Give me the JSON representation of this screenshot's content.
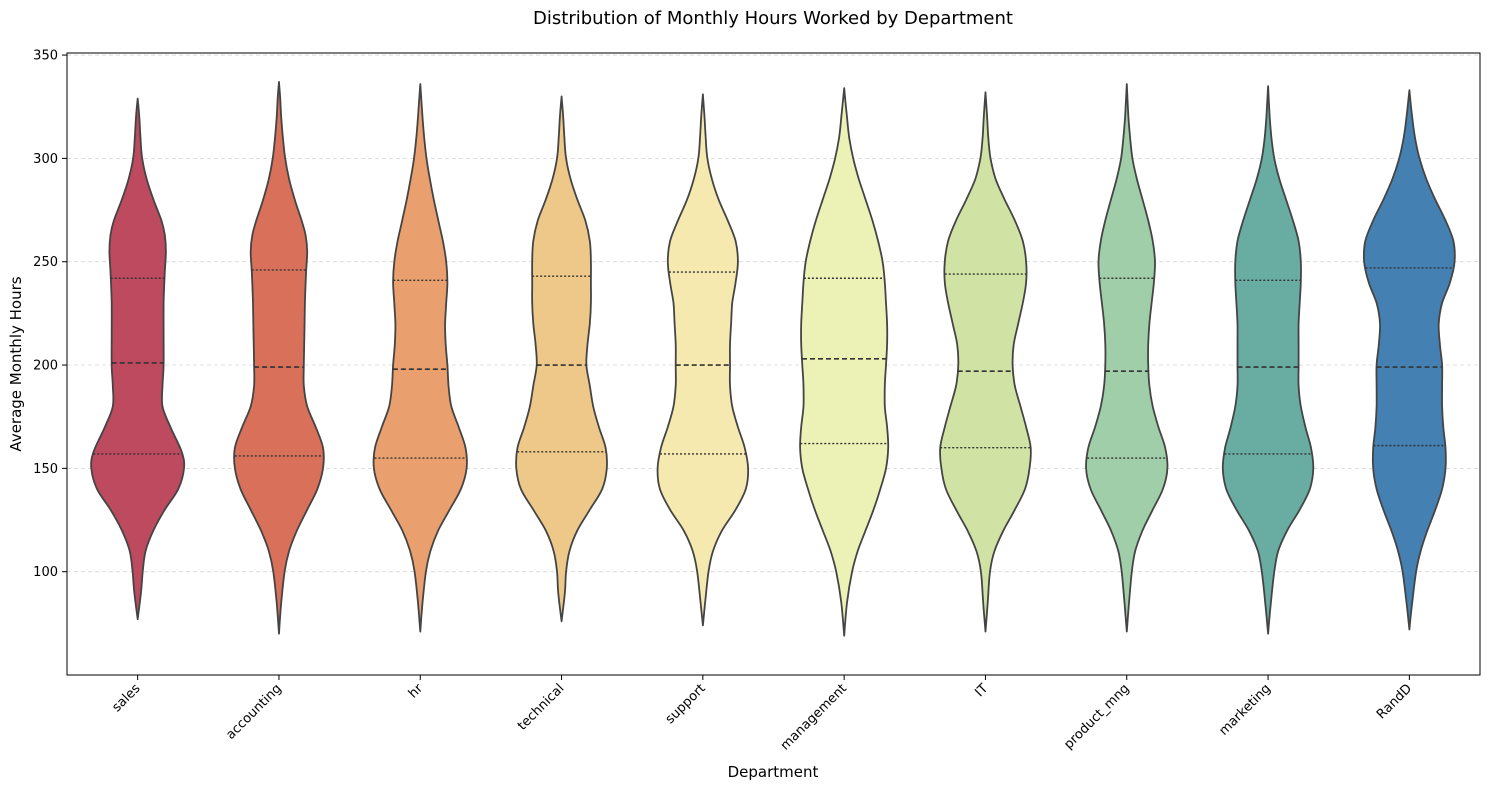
{
  "chart_data": {
    "type": "violin",
    "title": "Distribution of Monthly Hours Worked by Department",
    "xlabel": "Department",
    "ylabel": "Average Monthly Hours",
    "ylim": [
      50,
      351
    ],
    "yticks": [
      100,
      150,
      200,
      250,
      300,
      350
    ],
    "grid": "y-dashed",
    "inner": "quartile",
    "categories": [
      "sales",
      "accounting",
      "hr",
      "technical",
      "support",
      "management",
      "IT",
      "product_mng",
      "marketing",
      "RandD"
    ],
    "series": [
      {
        "category": "sales",
        "color": "#bd4a5e",
        "min": 77,
        "max": 329,
        "q1": 157,
        "median": 201,
        "q3": 242,
        "profile": [
          [
            77,
            0.01
          ],
          [
            90,
            0.06
          ],
          [
            100,
            0.09
          ],
          [
            110,
            0.14
          ],
          [
            120,
            0.28
          ],
          [
            130,
            0.48
          ],
          [
            140,
            0.72
          ],
          [
            150,
            0.82
          ],
          [
            158,
            0.78
          ],
          [
            170,
            0.58
          ],
          [
            180,
            0.44
          ],
          [
            190,
            0.44
          ],
          [
            200,
            0.46
          ],
          [
            215,
            0.46
          ],
          [
            230,
            0.46
          ],
          [
            245,
            0.48
          ],
          [
            255,
            0.5
          ],
          [
            263,
            0.48
          ],
          [
            270,
            0.42
          ],
          [
            280,
            0.28
          ],
          [
            290,
            0.16
          ],
          [
            300,
            0.08
          ],
          [
            310,
            0.05
          ],
          [
            320,
            0.03
          ],
          [
            329,
            0.01
          ]
        ]
      },
      {
        "category": "accounting",
        "color": "#d9705a",
        "min": 70,
        "max": 337,
        "q1": 156,
        "median": 199,
        "q3": 246,
        "profile": [
          [
            70,
            0.01
          ],
          [
            85,
            0.04
          ],
          [
            100,
            0.1
          ],
          [
            110,
            0.18
          ],
          [
            120,
            0.32
          ],
          [
            130,
            0.5
          ],
          [
            140,
            0.68
          ],
          [
            150,
            0.78
          ],
          [
            160,
            0.78
          ],
          [
            170,
            0.65
          ],
          [
            180,
            0.5
          ],
          [
            190,
            0.44
          ],
          [
            200,
            0.44
          ],
          [
            215,
            0.45
          ],
          [
            230,
            0.46
          ],
          [
            245,
            0.48
          ],
          [
            255,
            0.5
          ],
          [
            263,
            0.47
          ],
          [
            270,
            0.4
          ],
          [
            280,
            0.28
          ],
          [
            290,
            0.18
          ],
          [
            300,
            0.11
          ],
          [
            310,
            0.07
          ],
          [
            320,
            0.04
          ],
          [
            330,
            0.02
          ],
          [
            337,
            0.01
          ]
        ]
      },
      {
        "category": "hr",
        "color": "#e9a06e",
        "min": 71,
        "max": 336,
        "q1": 155,
        "median": 198,
        "q3": 241,
        "profile": [
          [
            71,
            0.01
          ],
          [
            85,
            0.04
          ],
          [
            100,
            0.1
          ],
          [
            110,
            0.18
          ],
          [
            120,
            0.32
          ],
          [
            130,
            0.52
          ],
          [
            140,
            0.72
          ],
          [
            150,
            0.82
          ],
          [
            160,
            0.8
          ],
          [
            170,
            0.68
          ],
          [
            180,
            0.55
          ],
          [
            190,
            0.5
          ],
          [
            200,
            0.48
          ],
          [
            210,
            0.45
          ],
          [
            220,
            0.44
          ],
          [
            230,
            0.46
          ],
          [
            240,
            0.48
          ],
          [
            250,
            0.46
          ],
          [
            260,
            0.4
          ],
          [
            270,
            0.32
          ],
          [
            280,
            0.24
          ],
          [
            290,
            0.17
          ],
          [
            300,
            0.11
          ],
          [
            310,
            0.07
          ],
          [
            320,
            0.04
          ],
          [
            336,
            0.01
          ]
        ]
      },
      {
        "category": "technical",
        "color": "#eec889",
        "min": 76,
        "max": 330,
        "q1": 158,
        "median": 200,
        "q3": 243,
        "profile": [
          [
            76,
            0.01
          ],
          [
            90,
            0.06
          ],
          [
            100,
            0.08
          ],
          [
            110,
            0.14
          ],
          [
            120,
            0.28
          ],
          [
            130,
            0.5
          ],
          [
            140,
            0.72
          ],
          [
            150,
            0.8
          ],
          [
            160,
            0.78
          ],
          [
            170,
            0.66
          ],
          [
            180,
            0.56
          ],
          [
            190,
            0.5
          ],
          [
            200,
            0.44
          ],
          [
            210,
            0.46
          ],
          [
            220,
            0.5
          ],
          [
            230,
            0.52
          ],
          [
            240,
            0.52
          ],
          [
            250,
            0.52
          ],
          [
            260,
            0.5
          ],
          [
            270,
            0.42
          ],
          [
            280,
            0.28
          ],
          [
            290,
            0.16
          ],
          [
            300,
            0.08
          ],
          [
            310,
            0.05
          ],
          [
            320,
            0.03
          ],
          [
            330,
            0.01
          ]
        ]
      },
      {
        "category": "support",
        "color": "#f5e9af",
        "min": 74,
        "max": 331,
        "q1": 157,
        "median": 200,
        "q3": 245,
        "profile": [
          [
            74,
            0.01
          ],
          [
            85,
            0.04
          ],
          [
            100,
            0.1
          ],
          [
            110,
            0.18
          ],
          [
            120,
            0.34
          ],
          [
            130,
            0.58
          ],
          [
            140,
            0.76
          ],
          [
            150,
            0.8
          ],
          [
            160,
            0.74
          ],
          [
            170,
            0.62
          ],
          [
            180,
            0.52
          ],
          [
            190,
            0.48
          ],
          [
            200,
            0.48
          ],
          [
            210,
            0.48
          ],
          [
            220,
            0.5
          ],
          [
            230,
            0.52
          ],
          [
            240,
            0.58
          ],
          [
            250,
            0.62
          ],
          [
            260,
            0.58
          ],
          [
            270,
            0.44
          ],
          [
            280,
            0.28
          ],
          [
            290,
            0.16
          ],
          [
            300,
            0.08
          ],
          [
            310,
            0.05
          ],
          [
            320,
            0.03
          ],
          [
            331,
            0.01
          ]
        ]
      },
      {
        "category": "management",
        "color": "#ecf2b6",
        "min": 69,
        "max": 334,
        "q1": 162,
        "median": 203,
        "q3": 242,
        "profile": [
          [
            69,
            0.01
          ],
          [
            85,
            0.05
          ],
          [
            100,
            0.14
          ],
          [
            110,
            0.24
          ],
          [
            120,
            0.38
          ],
          [
            130,
            0.52
          ],
          [
            140,
            0.64
          ],
          [
            150,
            0.74
          ],
          [
            160,
            0.78
          ],
          [
            170,
            0.76
          ],
          [
            180,
            0.72
          ],
          [
            190,
            0.72
          ],
          [
            200,
            0.74
          ],
          [
            210,
            0.76
          ],
          [
            220,
            0.76
          ],
          [
            230,
            0.74
          ],
          [
            240,
            0.72
          ],
          [
            250,
            0.68
          ],
          [
            260,
            0.6
          ],
          [
            270,
            0.5
          ],
          [
            280,
            0.38
          ],
          [
            290,
            0.26
          ],
          [
            300,
            0.16
          ],
          [
            310,
            0.09
          ],
          [
            320,
            0.05
          ],
          [
            334,
            0.01
          ]
        ]
      },
      {
        "category": "IT",
        "color": "#d1e3a4",
        "min": 71,
        "max": 332,
        "q1": 160,
        "median": 197,
        "q3": 244,
        "profile": [
          [
            71,
            0.01
          ],
          [
            85,
            0.04
          ],
          [
            100,
            0.08
          ],
          [
            110,
            0.16
          ],
          [
            120,
            0.32
          ],
          [
            130,
            0.52
          ],
          [
            140,
            0.7
          ],
          [
            150,
            0.78
          ],
          [
            160,
            0.8
          ],
          [
            170,
            0.72
          ],
          [
            180,
            0.62
          ],
          [
            190,
            0.52
          ],
          [
            200,
            0.48
          ],
          [
            210,
            0.5
          ],
          [
            220,
            0.58
          ],
          [
            230,
            0.66
          ],
          [
            240,
            0.72
          ],
          [
            250,
            0.72
          ],
          [
            260,
            0.66
          ],
          [
            270,
            0.52
          ],
          [
            280,
            0.34
          ],
          [
            290,
            0.18
          ],
          [
            300,
            0.09
          ],
          [
            310,
            0.05
          ],
          [
            320,
            0.03
          ],
          [
            332,
            0.01
          ]
        ]
      },
      {
        "category": "product_mng",
        "color": "#9fcea8",
        "min": 71,
        "max": 336,
        "q1": 155,
        "median": 197,
        "q3": 242,
        "profile": [
          [
            71,
            0.01
          ],
          [
            85,
            0.04
          ],
          [
            100,
            0.09
          ],
          [
            110,
            0.15
          ],
          [
            120,
            0.28
          ],
          [
            130,
            0.46
          ],
          [
            140,
            0.64
          ],
          [
            150,
            0.72
          ],
          [
            160,
            0.68
          ],
          [
            170,
            0.56
          ],
          [
            180,
            0.46
          ],
          [
            190,
            0.4
          ],
          [
            200,
            0.38
          ],
          [
            210,
            0.38
          ],
          [
            220,
            0.4
          ],
          [
            230,
            0.44
          ],
          [
            240,
            0.48
          ],
          [
            250,
            0.5
          ],
          [
            260,
            0.46
          ],
          [
            270,
            0.38
          ],
          [
            280,
            0.28
          ],
          [
            290,
            0.18
          ],
          [
            300,
            0.1
          ],
          [
            310,
            0.06
          ],
          [
            320,
            0.03
          ],
          [
            336,
            0.01
          ]
        ]
      },
      {
        "category": "marketing",
        "color": "#68aca2",
        "min": 70,
        "max": 335,
        "q1": 157,
        "median": 199,
        "q3": 241,
        "profile": [
          [
            70,
            0.01
          ],
          [
            85,
            0.05
          ],
          [
            100,
            0.11
          ],
          [
            110,
            0.18
          ],
          [
            120,
            0.34
          ],
          [
            130,
            0.56
          ],
          [
            140,
            0.74
          ],
          [
            150,
            0.8
          ],
          [
            160,
            0.76
          ],
          [
            170,
            0.66
          ],
          [
            180,
            0.58
          ],
          [
            190,
            0.54
          ],
          [
            200,
            0.54
          ],
          [
            210,
            0.54
          ],
          [
            220,
            0.54
          ],
          [
            230,
            0.56
          ],
          [
            240,
            0.58
          ],
          [
            250,
            0.58
          ],
          [
            260,
            0.54
          ],
          [
            270,
            0.44
          ],
          [
            280,
            0.32
          ],
          [
            290,
            0.2
          ],
          [
            300,
            0.11
          ],
          [
            310,
            0.06
          ],
          [
            320,
            0.03
          ],
          [
            335,
            0.01
          ]
        ]
      },
      {
        "category": "RandD",
        "color": "#4580b2",
        "min": 72,
        "max": 333,
        "q1": 161,
        "median": 199,
        "q3": 247,
        "profile": [
          [
            72,
            0.01
          ],
          [
            85,
            0.05
          ],
          [
            100,
            0.12
          ],
          [
            110,
            0.2
          ],
          [
            120,
            0.32
          ],
          [
            130,
            0.46
          ],
          [
            140,
            0.58
          ],
          [
            150,
            0.64
          ],
          [
            160,
            0.64
          ],
          [
            170,
            0.6
          ],
          [
            180,
            0.58
          ],
          [
            190,
            0.58
          ],
          [
            200,
            0.58
          ],
          [
            210,
            0.54
          ],
          [
            220,
            0.52
          ],
          [
            230,
            0.58
          ],
          [
            240,
            0.72
          ],
          [
            250,
            0.8
          ],
          [
            260,
            0.78
          ],
          [
            270,
            0.64
          ],
          [
            280,
            0.46
          ],
          [
            290,
            0.3
          ],
          [
            300,
            0.18
          ],
          [
            310,
            0.1
          ],
          [
            320,
            0.05
          ],
          [
            333,
            0.01
          ]
        ]
      }
    ]
  }
}
